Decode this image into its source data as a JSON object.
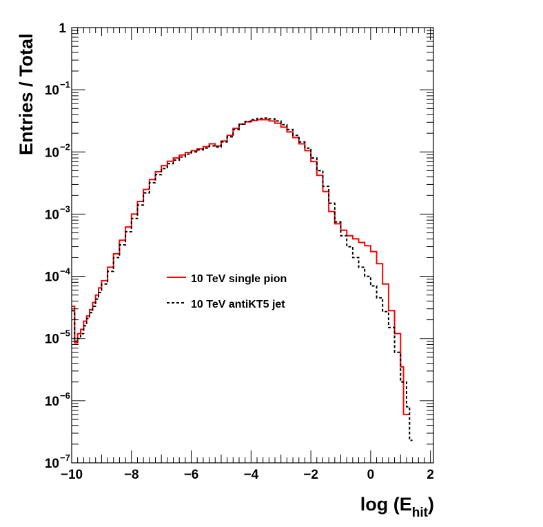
{
  "chart_data": {
    "type": "line",
    "title": "",
    "xlabel": "log (E",
    "xlabel_sub": "hit",
    "xlabel_close": ")",
    "ylabel": "Entries / Total",
    "xlim": [
      -10.0,
      2.1
    ],
    "ylim": [
      1e-07,
      1
    ],
    "yscale": "log",
    "grid": false,
    "legend_position": "center-left",
    "x_ticks": [
      {
        "value": -10,
        "label": "−10"
      },
      {
        "value": -8,
        "label": "−8"
      },
      {
        "value": -6,
        "label": "−6"
      },
      {
        "value": -4,
        "label": "−4"
      },
      {
        "value": -2,
        "label": "−2"
      },
      {
        "value": 0,
        "label": "0"
      },
      {
        "value": 2,
        "label": "2"
      }
    ],
    "y_ticks": [
      {
        "value": 1,
        "base": "1",
        "exp": ""
      },
      {
        "value": 0.1,
        "base": "10",
        "exp": "−1"
      },
      {
        "value": 0.01,
        "base": "10",
        "exp": "−2"
      },
      {
        "value": 0.001,
        "base": "10",
        "exp": "−3"
      },
      {
        "value": 0.0001,
        "base": "10",
        "exp": "−4"
      },
      {
        "value": 1e-05,
        "base": "10",
        "exp": "−5"
      },
      {
        "value": 1e-06,
        "base": "10",
        "exp": "−6"
      },
      {
        "value": 1e-07,
        "base": "10",
        "exp": "−7"
      }
    ],
    "series": [
      {
        "name": "10 TeV single pion",
        "color": "#ff0000",
        "style": "solid",
        "step": true,
        "x": [
          -10.0,
          -9.9,
          -9.8,
          -9.7,
          -9.6,
          -9.5,
          -9.4,
          -9.3,
          -9.2,
          -9.1,
          -9.0,
          -8.8,
          -8.6,
          -8.4,
          -8.2,
          -8.0,
          -7.8,
          -7.6,
          -7.4,
          -7.2,
          -7.0,
          -6.8,
          -6.6,
          -6.4,
          -6.2,
          -6.0,
          -5.8,
          -5.6,
          -5.4,
          -5.2,
          -5.0,
          -4.8,
          -4.6,
          -4.4,
          -4.2,
          -4.0,
          -3.8,
          -3.6,
          -3.4,
          -3.2,
          -3.0,
          -2.8,
          -2.6,
          -2.4,
          -2.2,
          -2.0,
          -1.8,
          -1.6,
          -1.4,
          -1.2,
          -1.0,
          -0.8,
          -0.6,
          -0.4,
          -0.2,
          0.0,
          0.2,
          0.4,
          0.6,
          0.8,
          1.0,
          1.1,
          1.2
        ],
        "y": [
          3.3e-05,
          8.5e-06,
          1.2e-05,
          1.4e-05,
          1.9e-05,
          2.3e-05,
          2.9e-05,
          3.8e-05,
          5e-05,
          6.5e-05,
          8.5e-05,
          0.00014,
          0.00023,
          0.00038,
          0.00062,
          0.001,
          0.0016,
          0.0025,
          0.0036,
          0.0048,
          0.006,
          0.0071,
          0.008,
          0.0089,
          0.0098,
          0.0105,
          0.0112,
          0.0122,
          0.0135,
          0.0125,
          0.015,
          0.0185,
          0.024,
          0.028,
          0.0305,
          0.032,
          0.033,
          0.033,
          0.0315,
          0.029,
          0.025,
          0.021,
          0.017,
          0.0135,
          0.0105,
          0.007,
          0.0042,
          0.0023,
          0.0011,
          0.0007,
          0.00055,
          0.00045,
          0.0004,
          0.00035,
          0.00031,
          0.00025,
          0.00016,
          7.5e-05,
          2.8e-05,
          1.2e-05,
          3.5e-06,
          6e-07,
          6e-07
        ]
      },
      {
        "name": "10 TeV antiKT5 jet",
        "color": "#000000",
        "style": "dashed",
        "step": true,
        "x": [
          -10.0,
          -9.9,
          -9.8,
          -9.7,
          -9.6,
          -9.5,
          -9.4,
          -9.3,
          -9.2,
          -9.1,
          -9.0,
          -8.8,
          -8.6,
          -8.4,
          -8.2,
          -8.0,
          -7.8,
          -7.6,
          -7.4,
          -7.2,
          -7.0,
          -6.8,
          -6.6,
          -6.4,
          -6.2,
          -6.0,
          -5.8,
          -5.6,
          -5.4,
          -5.2,
          -5.0,
          -4.8,
          -4.6,
          -4.4,
          -4.2,
          -4.0,
          -3.8,
          -3.6,
          -3.4,
          -3.2,
          -3.0,
          -2.8,
          -2.6,
          -2.4,
          -2.2,
          -2.0,
          -1.8,
          -1.6,
          -1.4,
          -1.2,
          -1.0,
          -0.8,
          -0.6,
          -0.4,
          -0.2,
          0.0,
          0.2,
          0.4,
          0.6,
          0.8,
          1.0,
          1.2,
          1.3
        ],
        "y": [
          2.8e-05,
          9e-06,
          1e-05,
          1.2e-05,
          1.6e-05,
          2.1e-05,
          2.6e-05,
          3.3e-05,
          4.3e-05,
          5.5e-05,
          7.5e-05,
          0.00012,
          0.0002,
          0.00032,
          0.00052,
          0.00085,
          0.0014,
          0.0022,
          0.0032,
          0.0043,
          0.0054,
          0.0065,
          0.0074,
          0.0083,
          0.0092,
          0.01,
          0.0108,
          0.0115,
          0.0125,
          0.012,
          0.0145,
          0.0175,
          0.023,
          0.028,
          0.031,
          0.033,
          0.0345,
          0.035,
          0.034,
          0.0315,
          0.0275,
          0.023,
          0.0185,
          0.0145,
          0.0115,
          0.008,
          0.005,
          0.0028,
          0.0015,
          0.00075,
          0.00045,
          0.0003,
          0.0002,
          0.00014,
          0.0001,
          7e-05,
          4.5e-05,
          2.7e-05,
          1.5e-05,
          6e-06,
          2e-06,
          8e-07,
          2.3e-07
        ]
      }
    ]
  }
}
